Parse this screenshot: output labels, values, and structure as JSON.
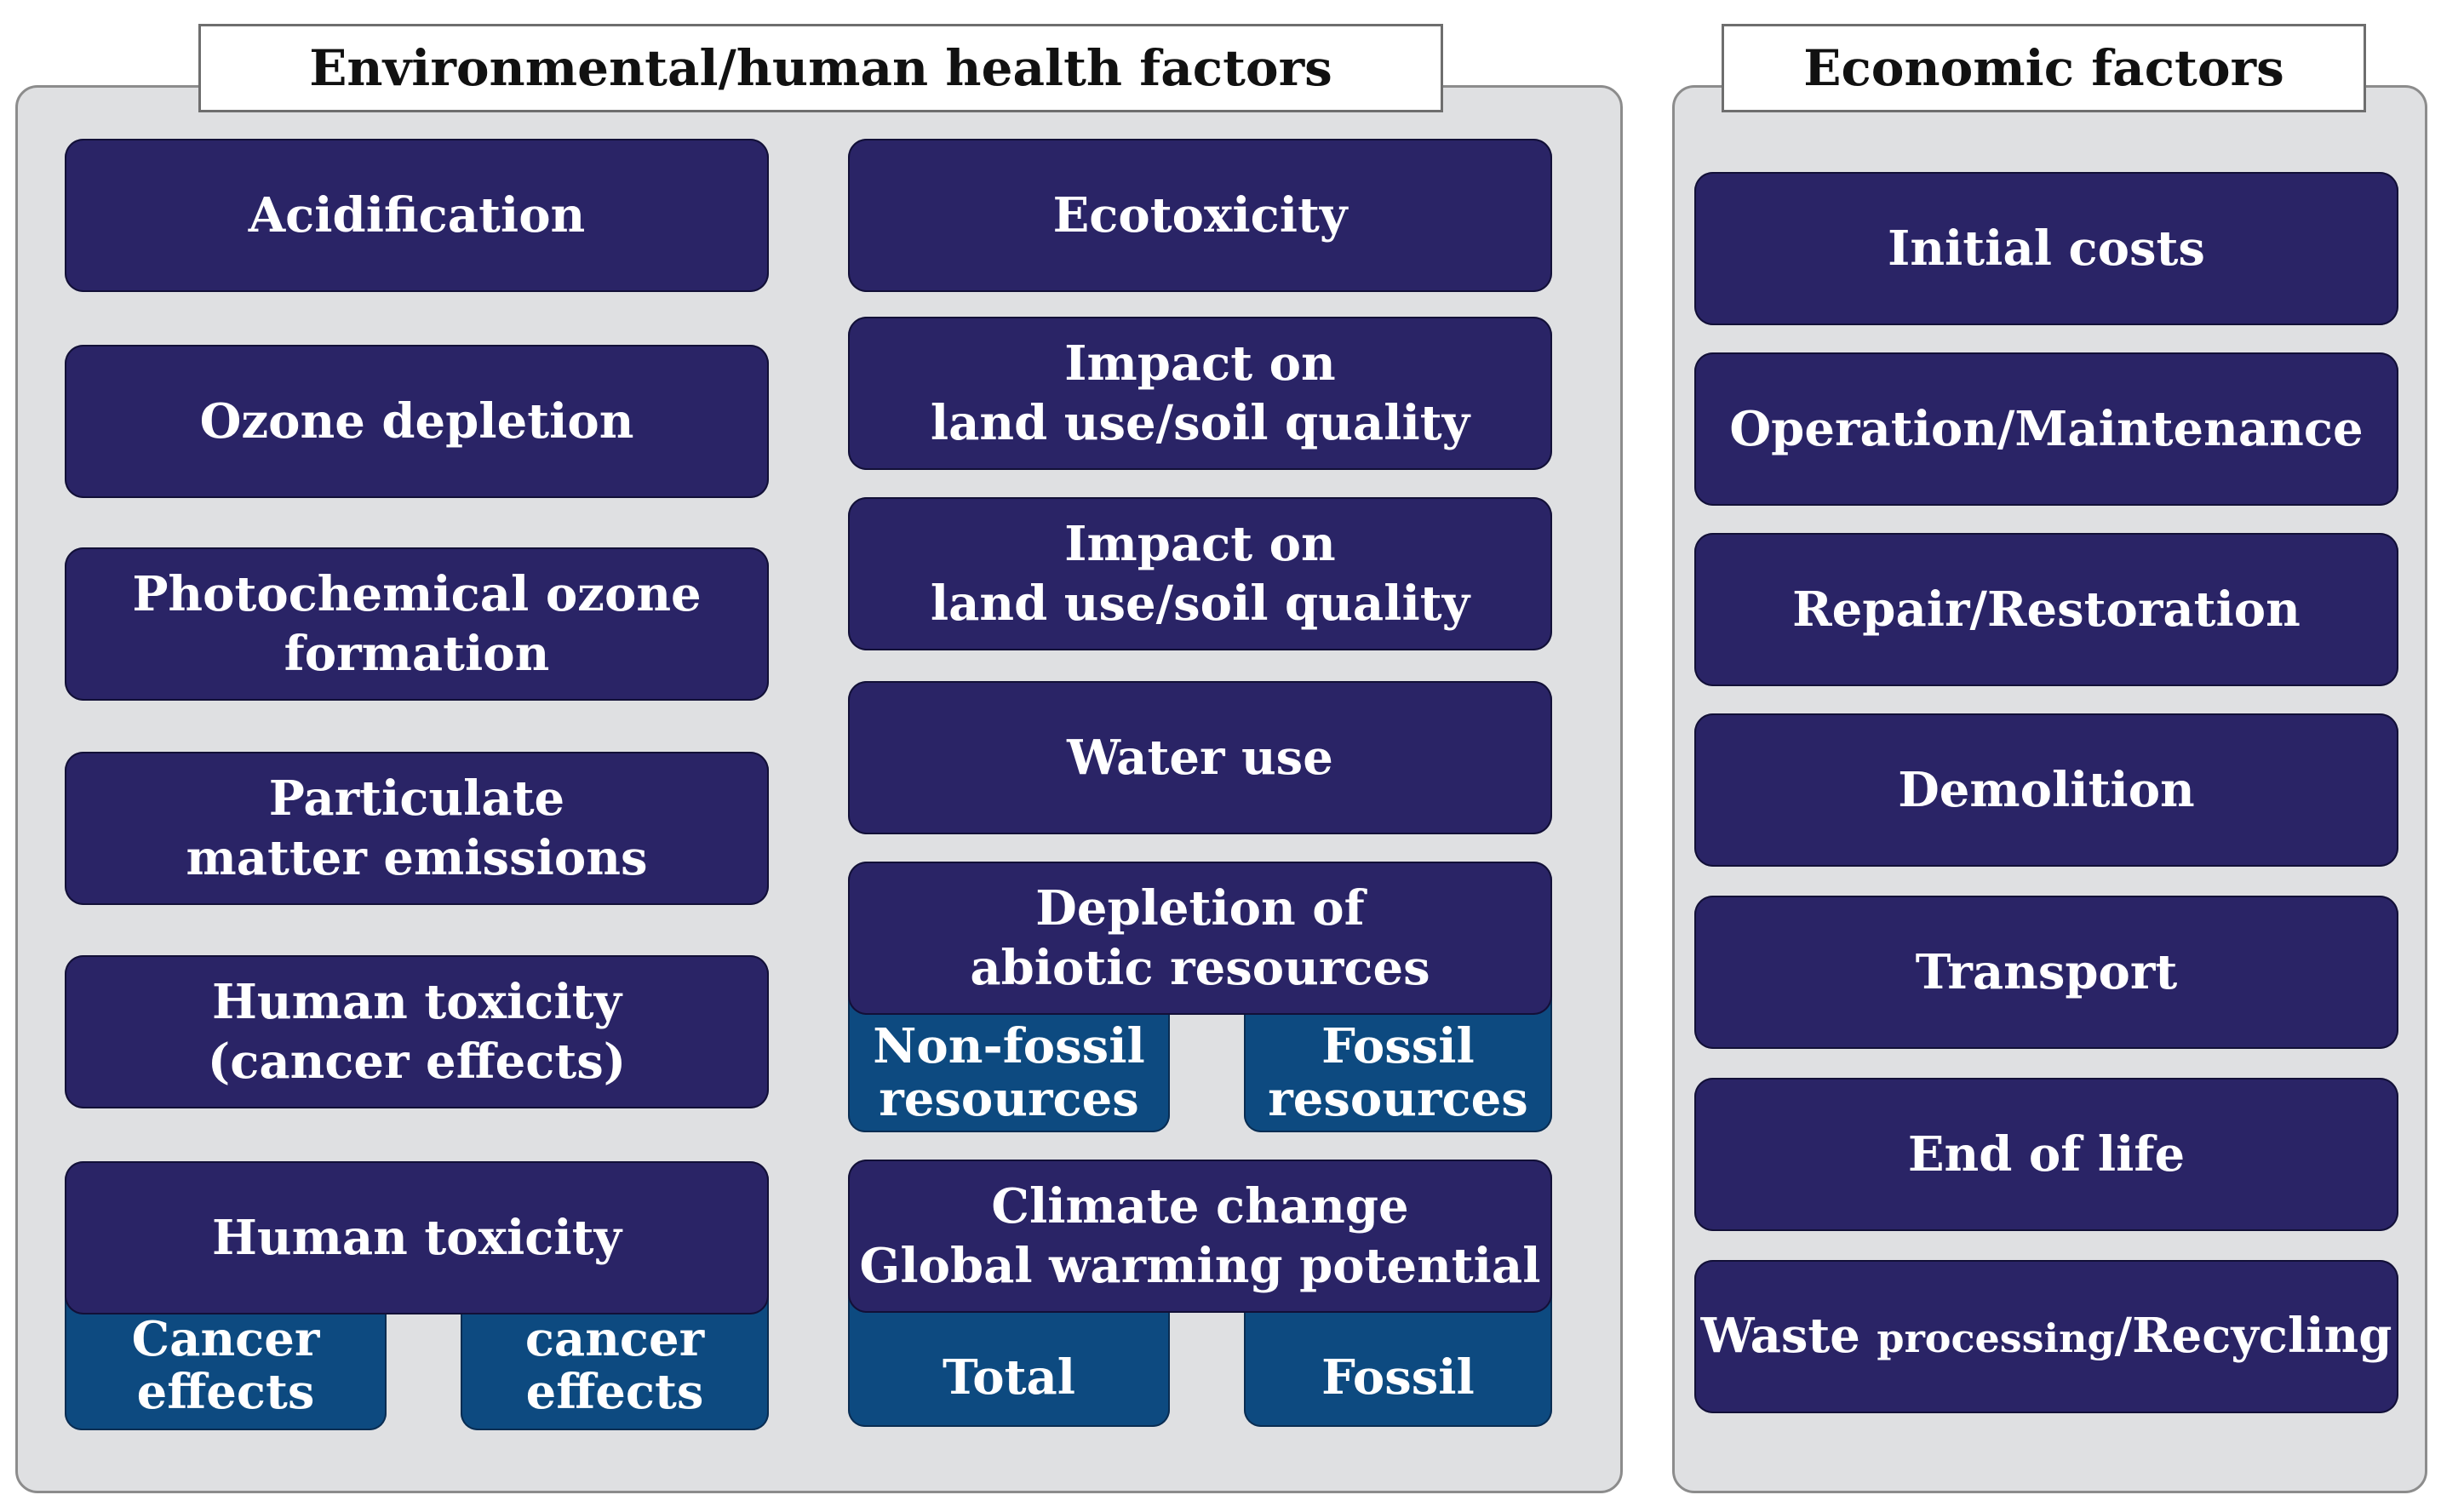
{
  "environmental": {
    "title": "Environmental/human health factors",
    "left": [
      {
        "label": "Acidification"
      },
      {
        "label": "Ozone depletion"
      },
      {
        "label": "Photochemical ozone\nformation"
      },
      {
        "label": "Particulate\nmatter emissions"
      },
      {
        "label": "Human toxicity\n(cancer effects)"
      },
      {
        "label": "Human toxicity",
        "subs": [
          "Cancer\neffects",
          "Non-cancer\neffects"
        ]
      }
    ],
    "right": [
      {
        "label": "Ecotoxicity"
      },
      {
        "label": "Impact on\nland use/soil quality"
      },
      {
        "label": "Impact on\nland use/soil quality"
      },
      {
        "label": "Water use"
      },
      {
        "label": "Depletion of\nabiotic resources",
        "subs": [
          "Non-fossil\nresources",
          "Fossil\nresources"
        ]
      },
      {
        "label": "Climate change\nGlobal warming potential",
        "subs": [
          "Total",
          "Fossil"
        ]
      }
    ]
  },
  "economic": {
    "title": "Economic factors",
    "items": [
      {
        "label": "Initial costs"
      },
      {
        "label": "Operation/Maintenance"
      },
      {
        "label": "Repair/Restoration"
      },
      {
        "label": "Demolition"
      },
      {
        "label": "Transport"
      },
      {
        "label": "End of life"
      },
      {
        "label_parts": [
          "Waste ",
          "processing",
          "/Recycling"
        ]
      }
    ]
  },
  "colors": {
    "box_fill": "#2a2466",
    "sub_box_fill": "#0d4a80",
    "panel_fill": "#dfe0e2"
  }
}
